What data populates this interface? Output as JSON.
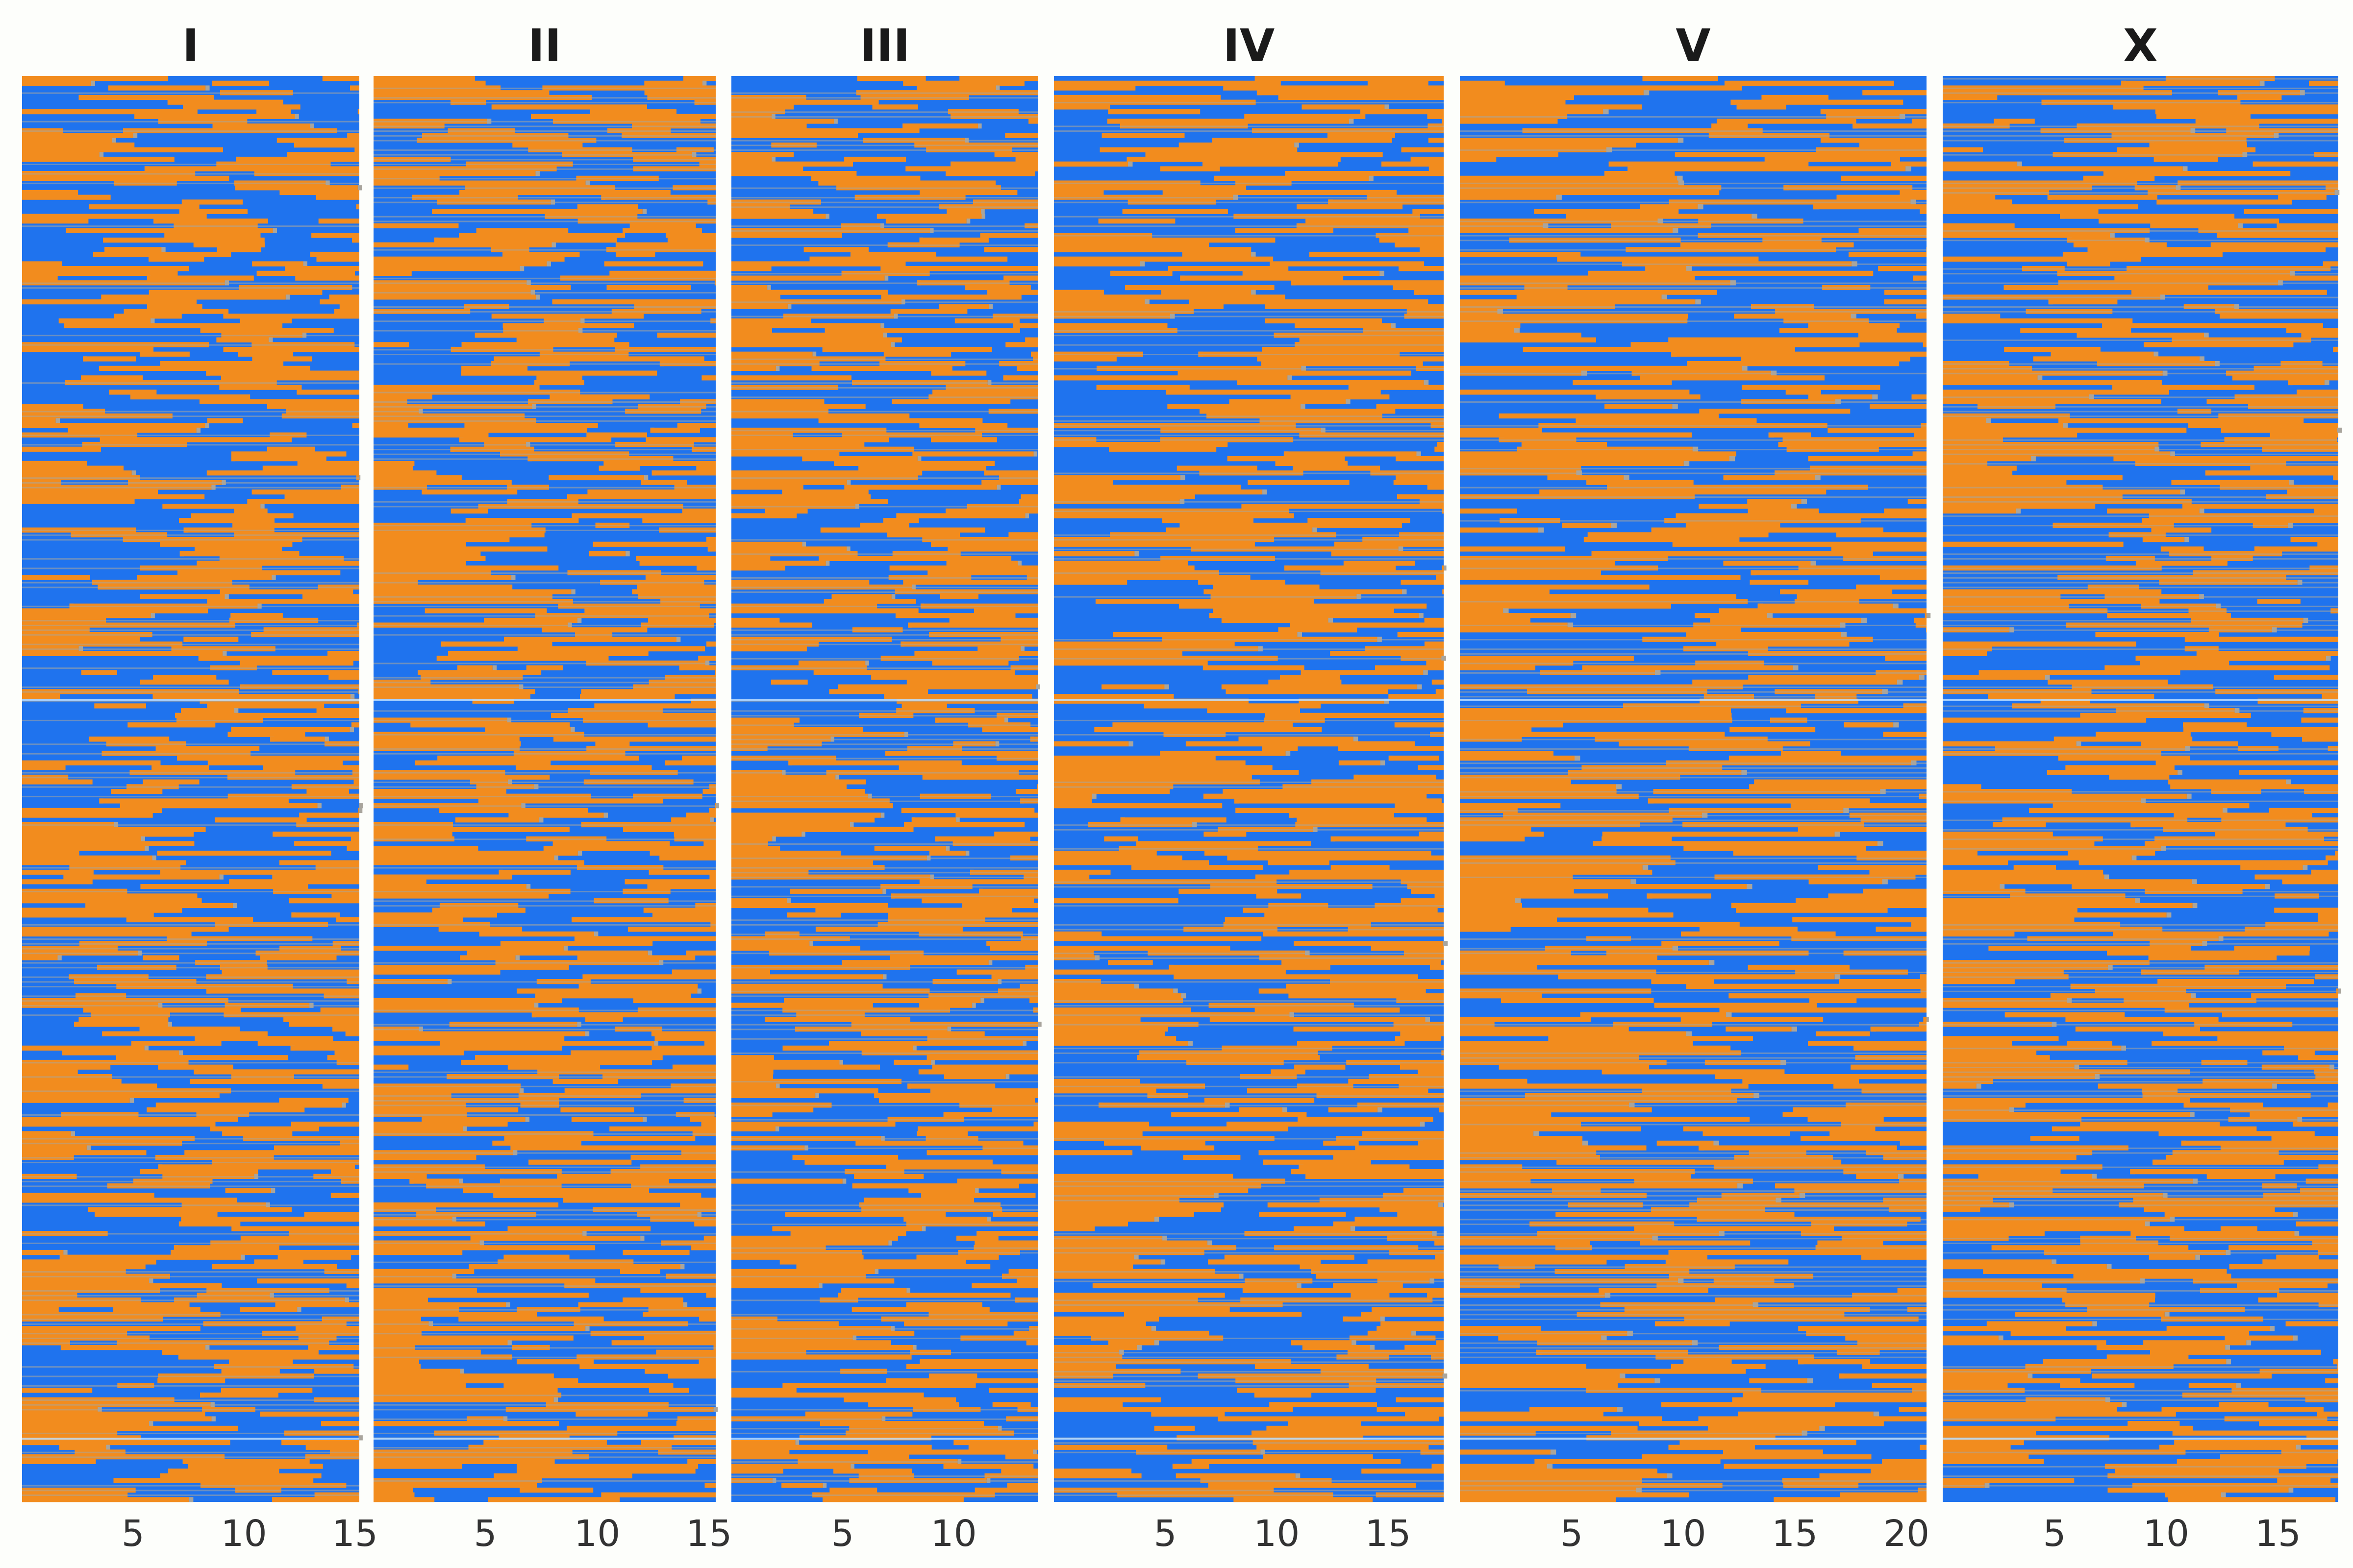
{
  "chart_data": {
    "type": "heatmap",
    "description_free": true,
    "genotype_colors": {
      "parent_a": "#f28c1e",
      "parent_b": "#1f73ee",
      "heterozygous": "#a9a59d",
      "missing": "#bfe0ff"
    },
    "panels": [
      {
        "title": "I",
        "xlim": [
          0,
          15.2
        ],
        "xticks": [
          5,
          10,
          15
        ]
      },
      {
        "title": "II",
        "xlim": [
          0,
          15.3
        ],
        "xticks": [
          5,
          10,
          15
        ]
      },
      {
        "title": "III",
        "xlim": [
          0,
          13.8
        ],
        "xticks": [
          5,
          10
        ]
      },
      {
        "title": "IV",
        "xlim": [
          0,
          17.5
        ],
        "xticks": [
          5,
          10,
          15
        ]
      },
      {
        "title": "V",
        "xlim": [
          0,
          20.9
        ],
        "xticks": [
          5,
          10,
          15,
          20
        ]
      },
      {
        "title": "X",
        "xlim": [
          0,
          17.7
        ],
        "xticks": [
          5,
          10,
          15
        ]
      }
    ],
    "grid": false,
    "legend": "none"
  }
}
